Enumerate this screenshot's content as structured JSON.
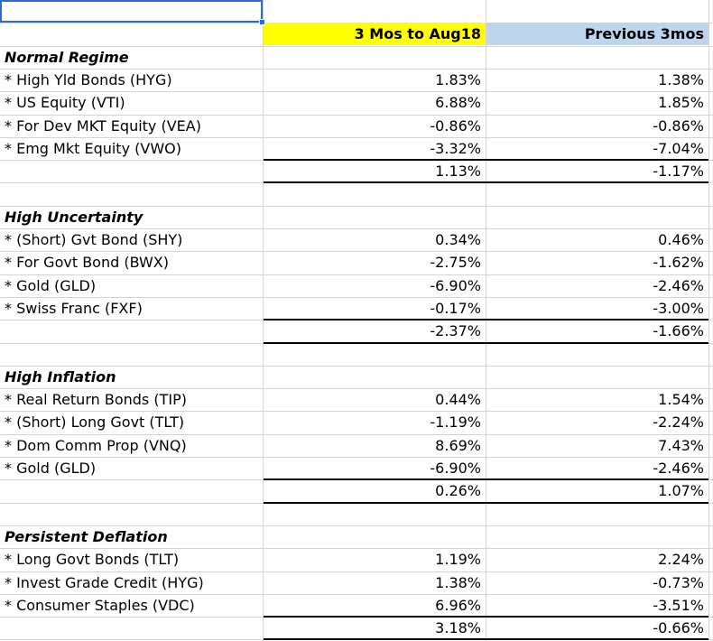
{
  "headers": {
    "col1": "3 Mos to Aug18",
    "col2": "Previous 3mos"
  },
  "sections": [
    {
      "title": "Normal Regime",
      "rows": [
        {
          "label": "* High Yld Bonds (HYG)",
          "v1": "1.83%",
          "v2": "1.38%"
        },
        {
          "label": "* US Equity (VTI)",
          "v1": "6.88%",
          "v2": "1.85%"
        },
        {
          "label": "* For Dev MKT Equity (VEA)",
          "v1": "-0.86%",
          "v2": "-0.86%"
        },
        {
          "label": "* Emg Mkt Equity (VWO)",
          "v1": "-3.32%",
          "v2": "-7.04%"
        }
      ],
      "total": {
        "v1": "1.13%",
        "v2": "-1.17%"
      }
    },
    {
      "title": "High Uncertainty",
      "rows": [
        {
          "label": "*  (Short) Gvt Bond (SHY)",
          "v1": "0.34%",
          "v2": "0.46%"
        },
        {
          "label": "*  For Govt Bond (BWX)",
          "v1": "-2.75%",
          "v2": "-1.62%"
        },
        {
          "label": "*  Gold (GLD)",
          "v1": "-6.90%",
          "v2": "-2.46%"
        },
        {
          "label": "*  Swiss Franc (FXF)",
          "v1": "-0.17%",
          "v2": "-3.00%"
        }
      ],
      "total": {
        "v1": "-2.37%",
        "v2": "-1.66%"
      }
    },
    {
      "title": "High Inflation",
      "rows": [
        {
          "label": "*  Real Return Bonds (TIP)",
          "v1": "0.44%",
          "v2": "1.54%"
        },
        {
          "label": "*  (Short) Long Govt (TLT)",
          "v1": "-1.19%",
          "v2": "-2.24%"
        },
        {
          "label": "*  Dom Comm Prop (VNQ)",
          "v1": "8.69%",
          "v2": "7.43%"
        },
        {
          "label": "*  Gold (GLD)",
          "v1": "-6.90%",
          "v2": "-2.46%"
        }
      ],
      "total": {
        "v1": "0.26%",
        "v2": "1.07%"
      }
    },
    {
      "title": "Persistent Deflation",
      "rows": [
        {
          "label": "*  Long Govt Bonds (TLT)",
          "v1": "1.19%",
          "v2": "2.24%"
        },
        {
          "label": "*  Invest Grade Credit (HYG)",
          "v1": "1.38%",
          "v2": "-0.73%"
        },
        {
          "label": "*  Consumer Staples (VDC)",
          "v1": "6.96%",
          "v2": "-3.51%"
        }
      ],
      "total": {
        "v1": "3.18%",
        "v2": "-0.66%"
      }
    }
  ],
  "colors": {
    "header1_bg": "#ffff00",
    "header2_bg": "#bdd6ee",
    "selection": "#2a6bd6"
  }
}
